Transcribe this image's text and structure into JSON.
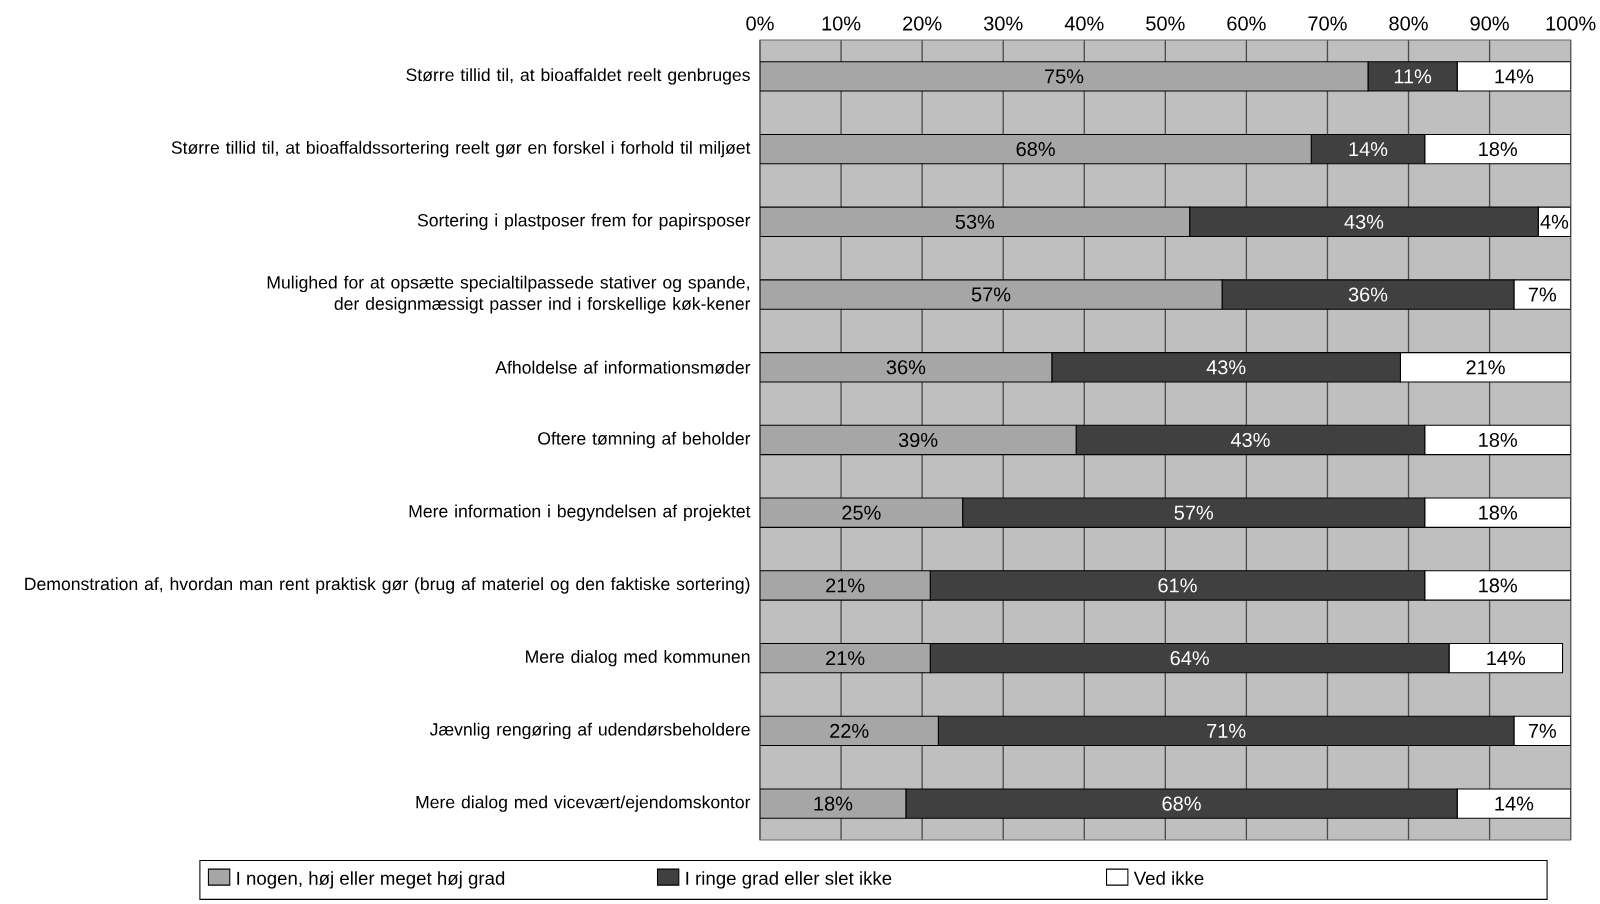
{
  "chart_data": {
    "type": "bar",
    "orientation": "horizontal",
    "stacked": true,
    "categories": [
      "Større tillid til, at bioaffaldet reelt genbruges",
      "Større tillid til, at bioaffaldssortering reelt gør en forskel i forhold til miljøet",
      "Sortering i plastposer frem for papirsposer",
      "Mulighed for at opsætte specialtilpassede stativer og spande, der designmæssigt passer ind i forskellige køk-kener",
      "Afholdelse af informationsmøder",
      "Oftere tømning af beholder",
      "Mere information i begyndelsen af projektet",
      "Demonstration af, hvordan man rent praktisk gør (brug af materiel og den faktiske sortering)",
      "Mere dialog med kommunen",
      "Jævnlig rengøring af udendørsbeholdere",
      "Mere dialog med vicevært/ejendomskontor"
    ],
    "series": [
      {
        "name": "I nogen, høj eller meget høj grad",
        "color": "#a6a6a6",
        "values": [
          75,
          68,
          53,
          57,
          36,
          39,
          25,
          21,
          21,
          22,
          18
        ],
        "value_labels": [
          "75%",
          "68%",
          "53%",
          "57%",
          "36%",
          "39%",
          "25%",
          "21%",
          "21%",
          "22%",
          "18%"
        ]
      },
      {
        "name": "I ringe grad eller slet ikke",
        "color": "#404040",
        "values": [
          11,
          14,
          43,
          36,
          43,
          43,
          57,
          61,
          64,
          71,
          68
        ],
        "value_labels": [
          "11%",
          "14%",
          "43%",
          "36%",
          "43%",
          "43%",
          "57%",
          "61%",
          "64%",
          "71%",
          "68%"
        ]
      },
      {
        "name": "Ved ikke",
        "color": "#ffffff",
        "values": [
          14,
          18,
          4,
          7,
          21,
          18,
          18,
          18,
          14,
          7,
          14
        ],
        "value_labels": [
          "14%",
          "18%",
          "4%",
          "7%",
          "21%",
          "18%",
          "18%",
          "18%",
          "14%",
          "7%",
          "14%"
        ]
      }
    ],
    "xlim": [
      0,
      100
    ],
    "xticks": [
      {
        "value": 0,
        "label": "0%"
      },
      {
        "value": 10,
        "label": "10%"
      },
      {
        "value": 20,
        "label": "20%"
      },
      {
        "value": 30,
        "label": "30%"
      },
      {
        "value": 40,
        "label": "40%"
      },
      {
        "value": 50,
        "label": "50%"
      },
      {
        "value": 60,
        "label": "60%"
      },
      {
        "value": 70,
        "label": "70%"
      },
      {
        "value": 80,
        "label": "80%"
      },
      {
        "value": 90,
        "label": "90%"
      },
      {
        "value": 100,
        "label": "100%"
      }
    ],
    "grid": "x",
    "legend": "bottom"
  }
}
